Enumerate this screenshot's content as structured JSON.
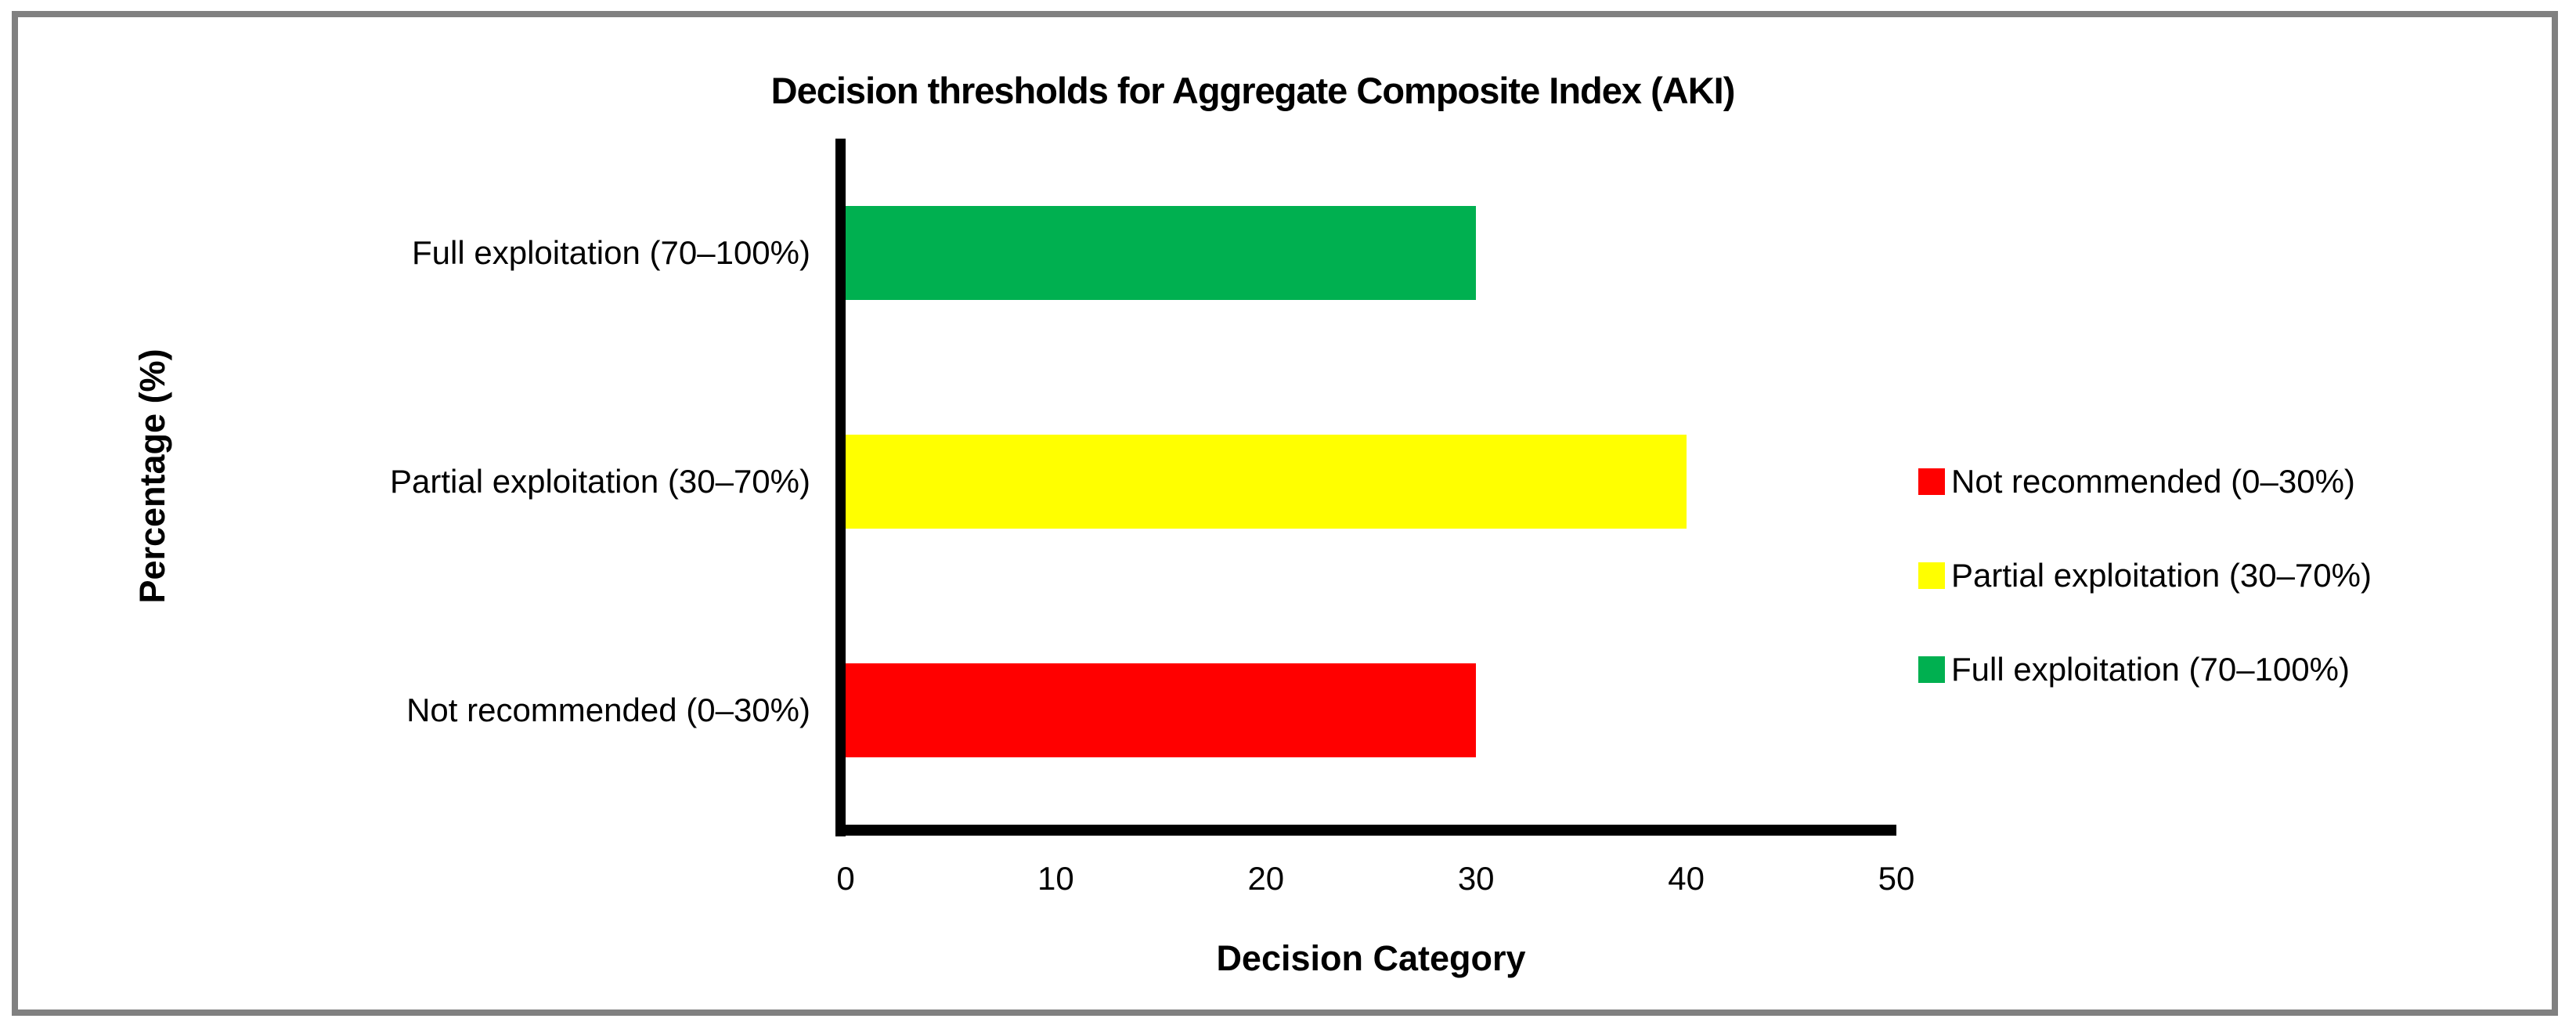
{
  "chart_data": {
    "type": "bar",
    "orientation": "horizontal",
    "title": "Decision thresholds for Aggregate Composite Index (AKI)",
    "xlabel": "Decision Category",
    "ylabel": "Percentage (%)",
    "xlim": [
      0,
      50
    ],
    "xticks": [
      0,
      10,
      20,
      30,
      40,
      50
    ],
    "grid": false,
    "categories": [
      "Full exploitation (70–100%)",
      "Partial exploitation (30–70%)",
      "Not recommended (0–30%)"
    ],
    "values": [
      30,
      40,
      30
    ],
    "colors": [
      "#00B050",
      "#FFFF00",
      "#FF0000"
    ],
    "legend_position": "right",
    "legend": [
      {
        "label": "Not recommended (0–30%)",
        "color": "#FF0000"
      },
      {
        "label": "Partial exploitation (30–70%)",
        "color": "#FFFF00"
      },
      {
        "label": "Full exploitation (70–100%)",
        "color": "#00B050"
      }
    ],
    "axis_color": "#000000",
    "border_color": "#808080",
    "background_color": "#FFFFFF"
  }
}
